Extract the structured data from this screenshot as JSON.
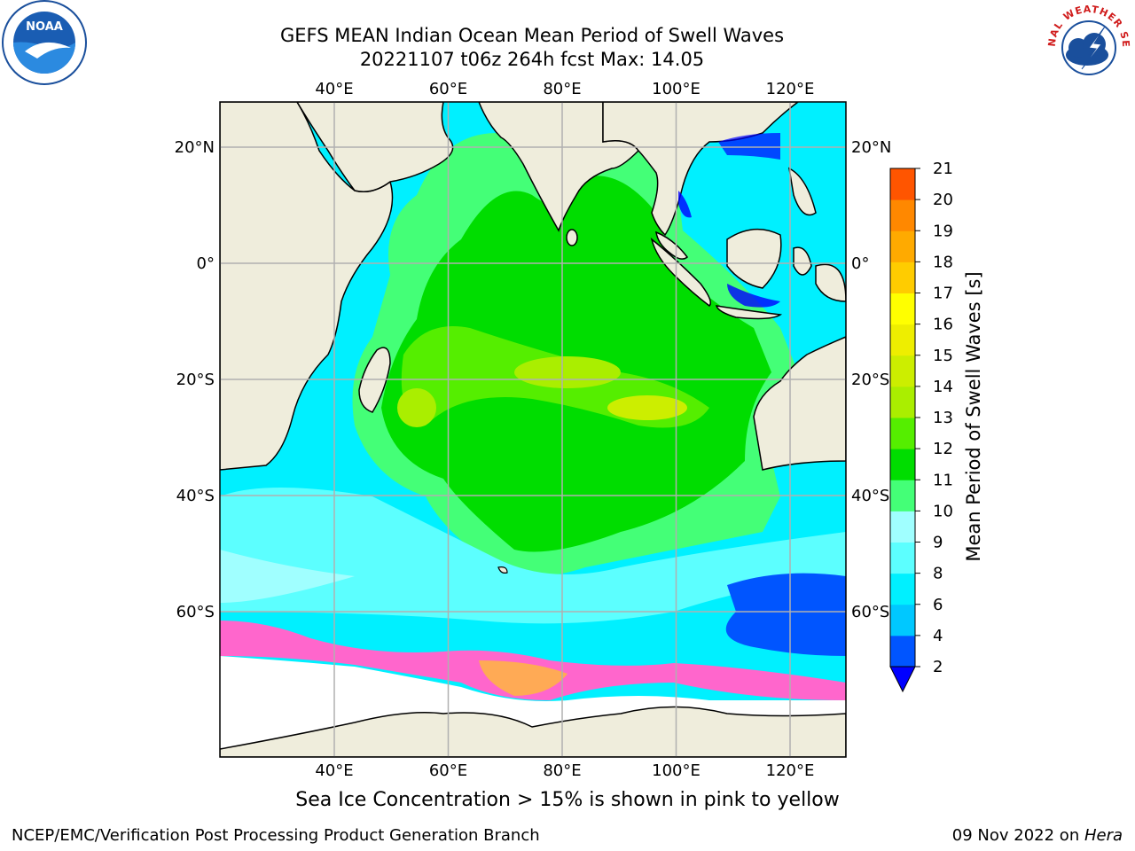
{
  "header": {
    "title_line1": "GEFS MEAN Indian Ocean Mean Period of Swell Waves",
    "title_line2": "20221107 t06z 264h fcst   Max: 14.05"
  },
  "logos": {
    "left": "NOAA",
    "right": "NATIONAL WEATHER SERVICE"
  },
  "map": {
    "lon_ticks": [
      "40°E",
      "60°E",
      "80°E",
      "100°E",
      "120°E"
    ],
    "lat_ticks_left": [
      "20°N",
      "0°",
      "20°S",
      "40°S",
      "60°S"
    ],
    "lat_ticks_right": [
      "20°N",
      "0°",
      "20°S",
      "40°S",
      "60°S"
    ],
    "lon_values": [
      40,
      60,
      80,
      100,
      120
    ],
    "lat_values": [
      20,
      0,
      -20,
      -40,
      -60
    ],
    "colors": {
      "land": "#efeddc",
      "coast": "#000000",
      "grid": "#b0b0b0",
      "ice_white": "#ffffff"
    }
  },
  "colorbar": {
    "label": "Mean Period of Swell Waves [s]",
    "ticks": [
      "2",
      "4",
      "6",
      "8",
      "9",
      "10",
      "11",
      "12",
      "13",
      "14",
      "15",
      "16",
      "17",
      "18",
      "19",
      "20",
      "21"
    ],
    "colors": [
      "#0055ff",
      "#00c8ff",
      "#00f0ff",
      "#5cffff",
      "#a0ffff",
      "#44ff77",
      "#00dd00",
      "#55ee00",
      "#aaee00",
      "#ccee00",
      "#eeee00",
      "#ffff00",
      "#ffcc00",
      "#ffaa00",
      "#ff8800",
      "#ff5500",
      "#ff2200",
      "#ff0000"
    ],
    "extend_color": "#0000ff"
  },
  "caption": "Sea Ice Concentration > 15% is shown in pink to yellow",
  "footer": {
    "left": "NCEP/EMC/Verification Post Processing Product Generation Branch",
    "right_date": "09 Nov 2022 on ",
    "right_host": "Hera"
  }
}
